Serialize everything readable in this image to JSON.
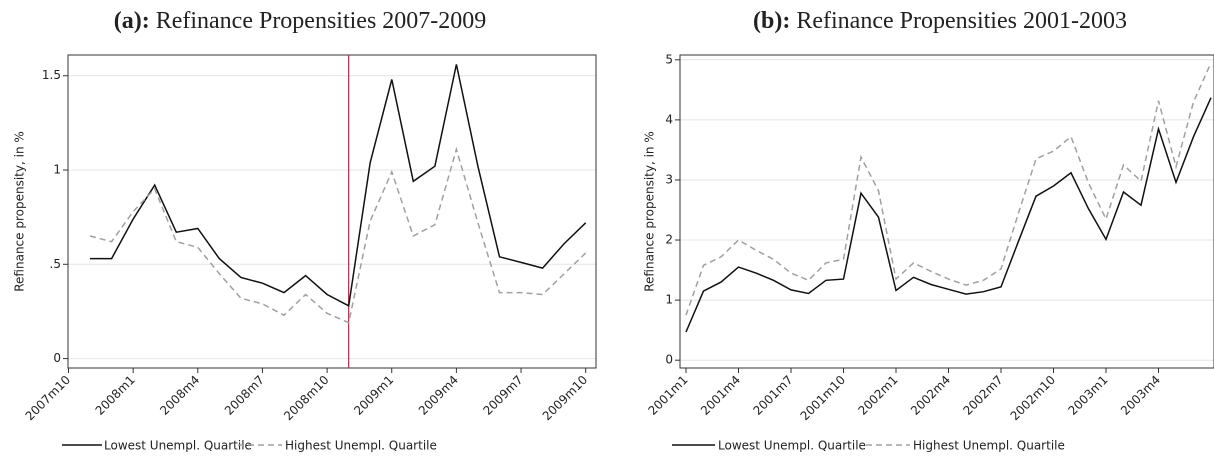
{
  "chart_data": [
    {
      "type": "line",
      "label": "(a):",
      "title": "Refinance Propensities 2007-2009",
      "ylabel": "Refinance propensity, in %",
      "categories": [
        "2007m10",
        null,
        null,
        "2008m1",
        null,
        null,
        "2008m4",
        null,
        null,
        "2008m7",
        null,
        null,
        "2008m10",
        null,
        null,
        "2009m1",
        null,
        null,
        "2009m4",
        null,
        null,
        "2009m7",
        null,
        null,
        "2009m10"
      ],
      "series": [
        {
          "name": "Lowest Unempl. Quartile",
          "color": "#111111",
          "dash": false,
          "values": [
            null,
            0.53,
            0.53,
            0.74,
            0.92,
            0.67,
            0.69,
            0.53,
            0.43,
            0.4,
            0.35,
            0.44,
            0.34,
            0.28,
            1.04,
            1.48,
            0.94,
            1.02,
            1.56,
            1.02,
            0.54,
            0.51,
            0.48,
            0.61,
            0.72
          ]
        },
        {
          "name": "Highest Unempl. Quartile",
          "color": "#a0a0a0",
          "dash": true,
          "values": [
            null,
            0.65,
            0.62,
            0.78,
            0.9,
            0.62,
            0.59,
            0.45,
            0.32,
            0.29,
            0.23,
            0.34,
            0.24,
            0.19,
            0.73,
            0.99,
            0.65,
            0.71,
            1.11,
            0.72,
            0.35,
            0.35,
            0.34,
            0.45,
            0.56
          ]
        }
      ],
      "ylim": [
        -0.05,
        1.61
      ],
      "yticks": [
        0,
        {
          "value": 0.5,
          "label": ".5"
        },
        1,
        1.5
      ],
      "grid": true,
      "vline": {
        "category": 13,
        "color": "#b03050"
      }
    },
    {
      "type": "line",
      "label": "(b):",
      "title": "Refinance Propensities 2001-2003",
      "ylabel": "Refinance propensity, in %",
      "categories": [
        "2001m1",
        null,
        null,
        "2001m4",
        null,
        null,
        "2001m7",
        null,
        null,
        "2001m10",
        null,
        null,
        "2002m1",
        null,
        null,
        "2002m4",
        null,
        null,
        "2002m7",
        null,
        null,
        "2002m10",
        null,
        null,
        "2003m1",
        null,
        null,
        "2003m4",
        null,
        null,
        null
      ],
      "series": [
        {
          "name": "Lowest Unempl. Quartile",
          "color": "#111111",
          "dash": false,
          "values": [
            0.47,
            1.15,
            1.3,
            1.55,
            1.45,
            1.33,
            1.17,
            1.11,
            1.33,
            1.35,
            2.78,
            2.38,
            1.16,
            1.38,
            1.26,
            1.18,
            1.1,
            1.14,
            1.22,
            1.98,
            2.73,
            2.9,
            3.12,
            2.52,
            2.01,
            2.8,
            2.58,
            3.85,
            2.96,
            3.72,
            4.37
          ]
        },
        {
          "name": "Highest Unempl. Quartile",
          "color": "#a0a0a0",
          "dash": true,
          "values": [
            0.75,
            1.58,
            1.72,
            2.0,
            1.83,
            1.68,
            1.45,
            1.33,
            1.62,
            1.68,
            3.38,
            2.82,
            1.35,
            1.62,
            1.48,
            1.35,
            1.25,
            1.33,
            1.52,
            2.45,
            3.35,
            3.48,
            3.72,
            2.95,
            2.35,
            3.25,
            2.98,
            4.32,
            3.22,
            4.3,
            4.95
          ]
        }
      ],
      "ylim": [
        -0.13,
        5.08
      ],
      "yticks": [
        0,
        1,
        2,
        3,
        4,
        5
      ],
      "grid": true
    }
  ]
}
